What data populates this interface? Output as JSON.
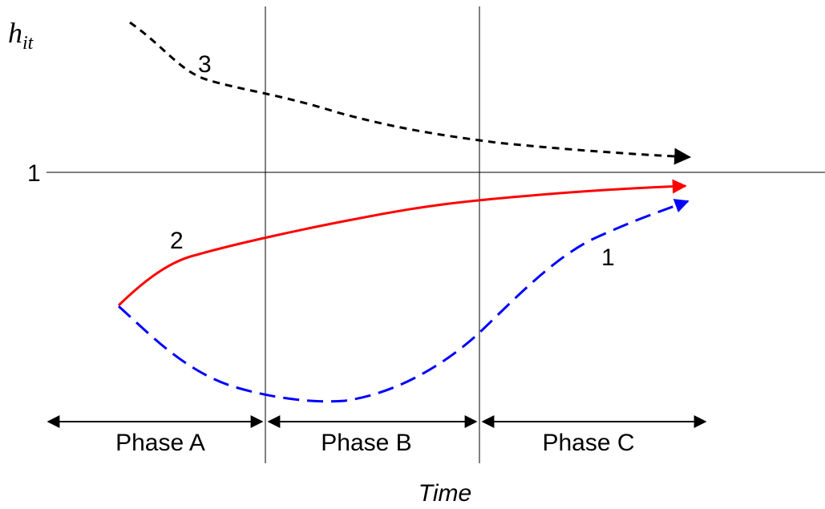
{
  "y_axis_label": {
    "main": "h",
    "sub": "it"
  },
  "x_axis_label": "Time",
  "reference_line_label": "1",
  "phases": [
    {
      "label": "Phase A"
    },
    {
      "label": "Phase B"
    },
    {
      "label": "Phase C"
    }
  ],
  "curves": [
    {
      "label": "3",
      "color": "#000000",
      "style": "short-dash"
    },
    {
      "label": "2",
      "color": "#ff0000",
      "style": "solid"
    },
    {
      "label": "1",
      "color": "#0000ff",
      "style": "long-dash"
    }
  ]
}
